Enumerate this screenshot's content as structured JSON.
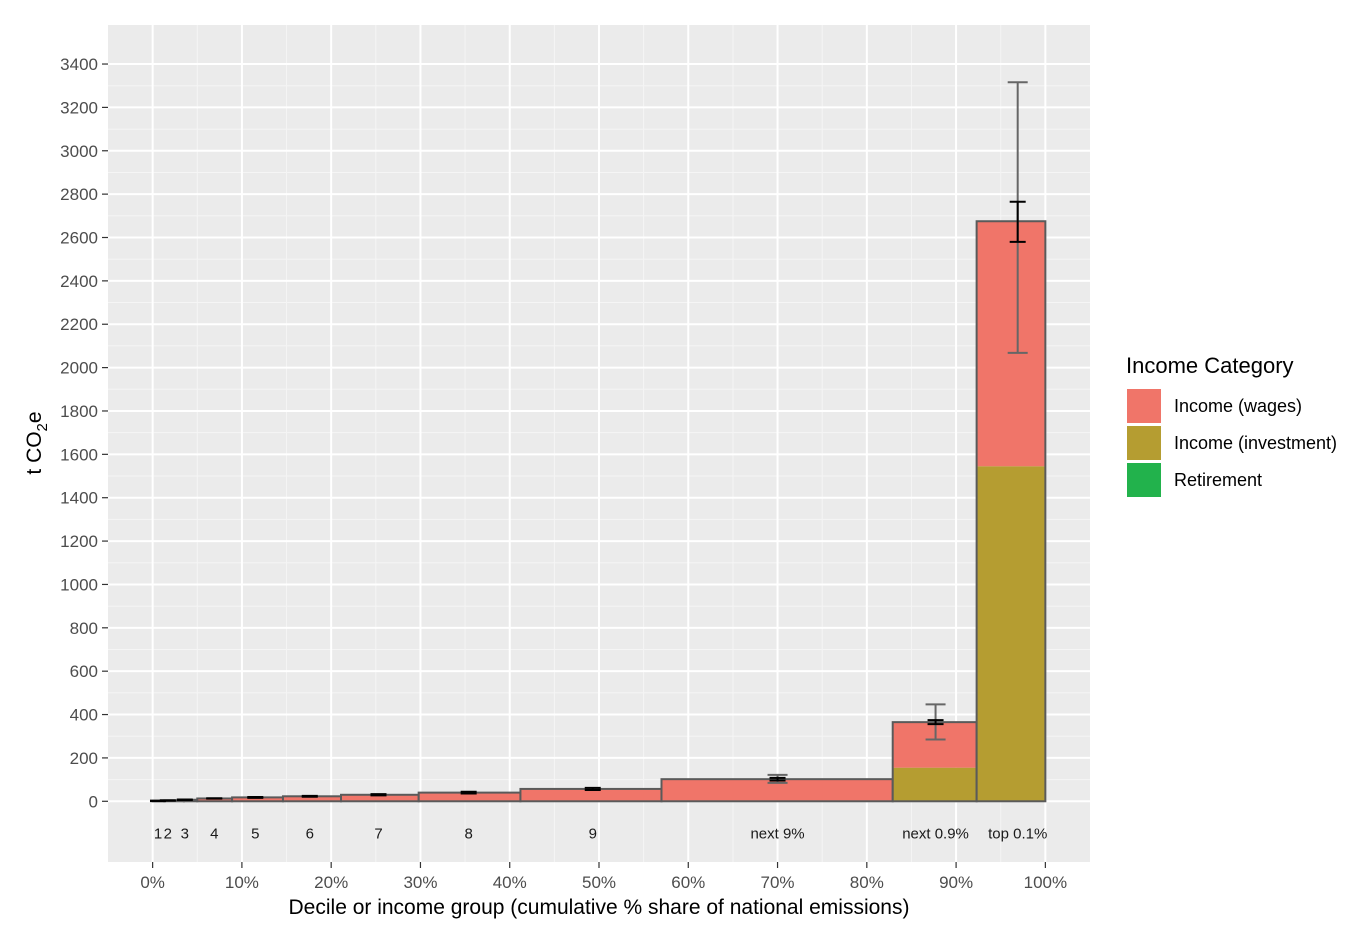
{
  "chart_data": {
    "type": "bar",
    "subtype": "stacked-variable-width",
    "title": "",
    "xlabel": "Decile or income group (cumulative % share of national emissions)",
    "ylabel": {
      "main": "t CO",
      "sub": "2",
      "tail": "e"
    },
    "xlim": [
      -5,
      105
    ],
    "ylim": [
      -280,
      3580
    ],
    "x_ticks": [
      0,
      10,
      20,
      30,
      40,
      50,
      60,
      70,
      80,
      90,
      100
    ],
    "x_tick_labels": [
      "0%",
      "10%",
      "20%",
      "30%",
      "40%",
      "50%",
      "60%",
      "70%",
      "80%",
      "90%",
      "100%"
    ],
    "y_ticks": [
      0,
      200,
      400,
      600,
      800,
      1000,
      1200,
      1400,
      1600,
      1800,
      2000,
      2200,
      2400,
      2600,
      2800,
      3000,
      3200,
      3400
    ],
    "y_tick_labels": [
      "0",
      "200",
      "400",
      "600",
      "800",
      "1000",
      "1200",
      "1400",
      "1600",
      "1800",
      "2000",
      "2200",
      "2400",
      "2600",
      "2800",
      "3000",
      "3200",
      "3400"
    ],
    "grid": true,
    "legend_position": "right",
    "legend_title": "Income Category",
    "series": [
      {
        "name": "Income (wages)",
        "color": "#F07569"
      },
      {
        "name": "Income (investment)",
        "color": "#B59D31"
      },
      {
        "name": "Retirement",
        "color": "#22B24C"
      }
    ],
    "groups": [
      {
        "label": "1",
        "label_x": 0.6,
        "x0": 0.0,
        "x1": 1.3,
        "total": 2,
        "investment": 0
      },
      {
        "label": "2",
        "label_x": 1.7,
        "x0": 1.3,
        "x1": 3.5,
        "total": 4,
        "investment": 0
      },
      {
        "label": "3",
        "label_x": 3.6,
        "x0": 3.5,
        "x1": 5.0,
        "total": 7,
        "investment": 0
      },
      {
        "label": "4",
        "label_x": 6.9,
        "x0": 5.0,
        "x1": 8.9,
        "total": 13,
        "investment": 0
      },
      {
        "label": "5",
        "label_x": 11.5,
        "x0": 8.9,
        "x1": 14.6,
        "total": 18,
        "investment": 0
      },
      {
        "label": "6",
        "label_x": 17.6,
        "x0": 14.6,
        "x1": 21.1,
        "total": 23,
        "investment": 0
      },
      {
        "label": "7",
        "label_x": 25.3,
        "x0": 21.1,
        "x1": 29.8,
        "total": 30,
        "investment": 0
      },
      {
        "label": "8",
        "label_x": 35.4,
        "x0": 29.8,
        "x1": 41.2,
        "total": 40,
        "investment": 0
      },
      {
        "label": "9",
        "label_x": 49.3,
        "x0": 41.2,
        "x1": 57.0,
        "total": 57,
        "investment": 0
      },
      {
        "label": "next 9%",
        "label_x": 70.0,
        "x0": 57.0,
        "x1": 82.9,
        "total": 102,
        "investment": 0
      },
      {
        "label": "next 0.9%",
        "label_x": 87.7,
        "x0": 82.9,
        "x1": 92.3,
        "total": 365,
        "investment": 155
      },
      {
        "label": "top 0.1%",
        "label_x": 96.9,
        "x0": 92.3,
        "x1": 100.0,
        "total": 2675,
        "investment": 1545
      }
    ],
    "error_bars_wide": [
      {
        "x": 70.0,
        "lower": 85,
        "upper": 122
      },
      {
        "x": 87.7,
        "lower": 285,
        "upper": 447
      },
      {
        "x": 96.9,
        "lower": 2068,
        "upper": 3316
      }
    ],
    "error_bars_narrow": [
      {
        "x": 0.6,
        "lower": 1,
        "upper": 3
      },
      {
        "x": 1.7,
        "lower": 3,
        "upper": 5
      },
      {
        "x": 3.6,
        "lower": 6,
        "upper": 8
      },
      {
        "x": 6.9,
        "lower": 12,
        "upper": 14
      },
      {
        "x": 11.5,
        "lower": 16,
        "upper": 20
      },
      {
        "x": 17.6,
        "lower": 21,
        "upper": 25
      },
      {
        "x": 25.3,
        "lower": 27,
        "upper": 33
      },
      {
        "x": 35.4,
        "lower": 36,
        "upper": 44
      },
      {
        "x": 49.3,
        "lower": 52,
        "upper": 62
      },
      {
        "x": 70.0,
        "lower": 96,
        "upper": 108
      },
      {
        "x": 87.7,
        "lower": 356,
        "upper": 374
      },
      {
        "x": 96.9,
        "lower": 2580,
        "upper": 2765
      }
    ]
  }
}
